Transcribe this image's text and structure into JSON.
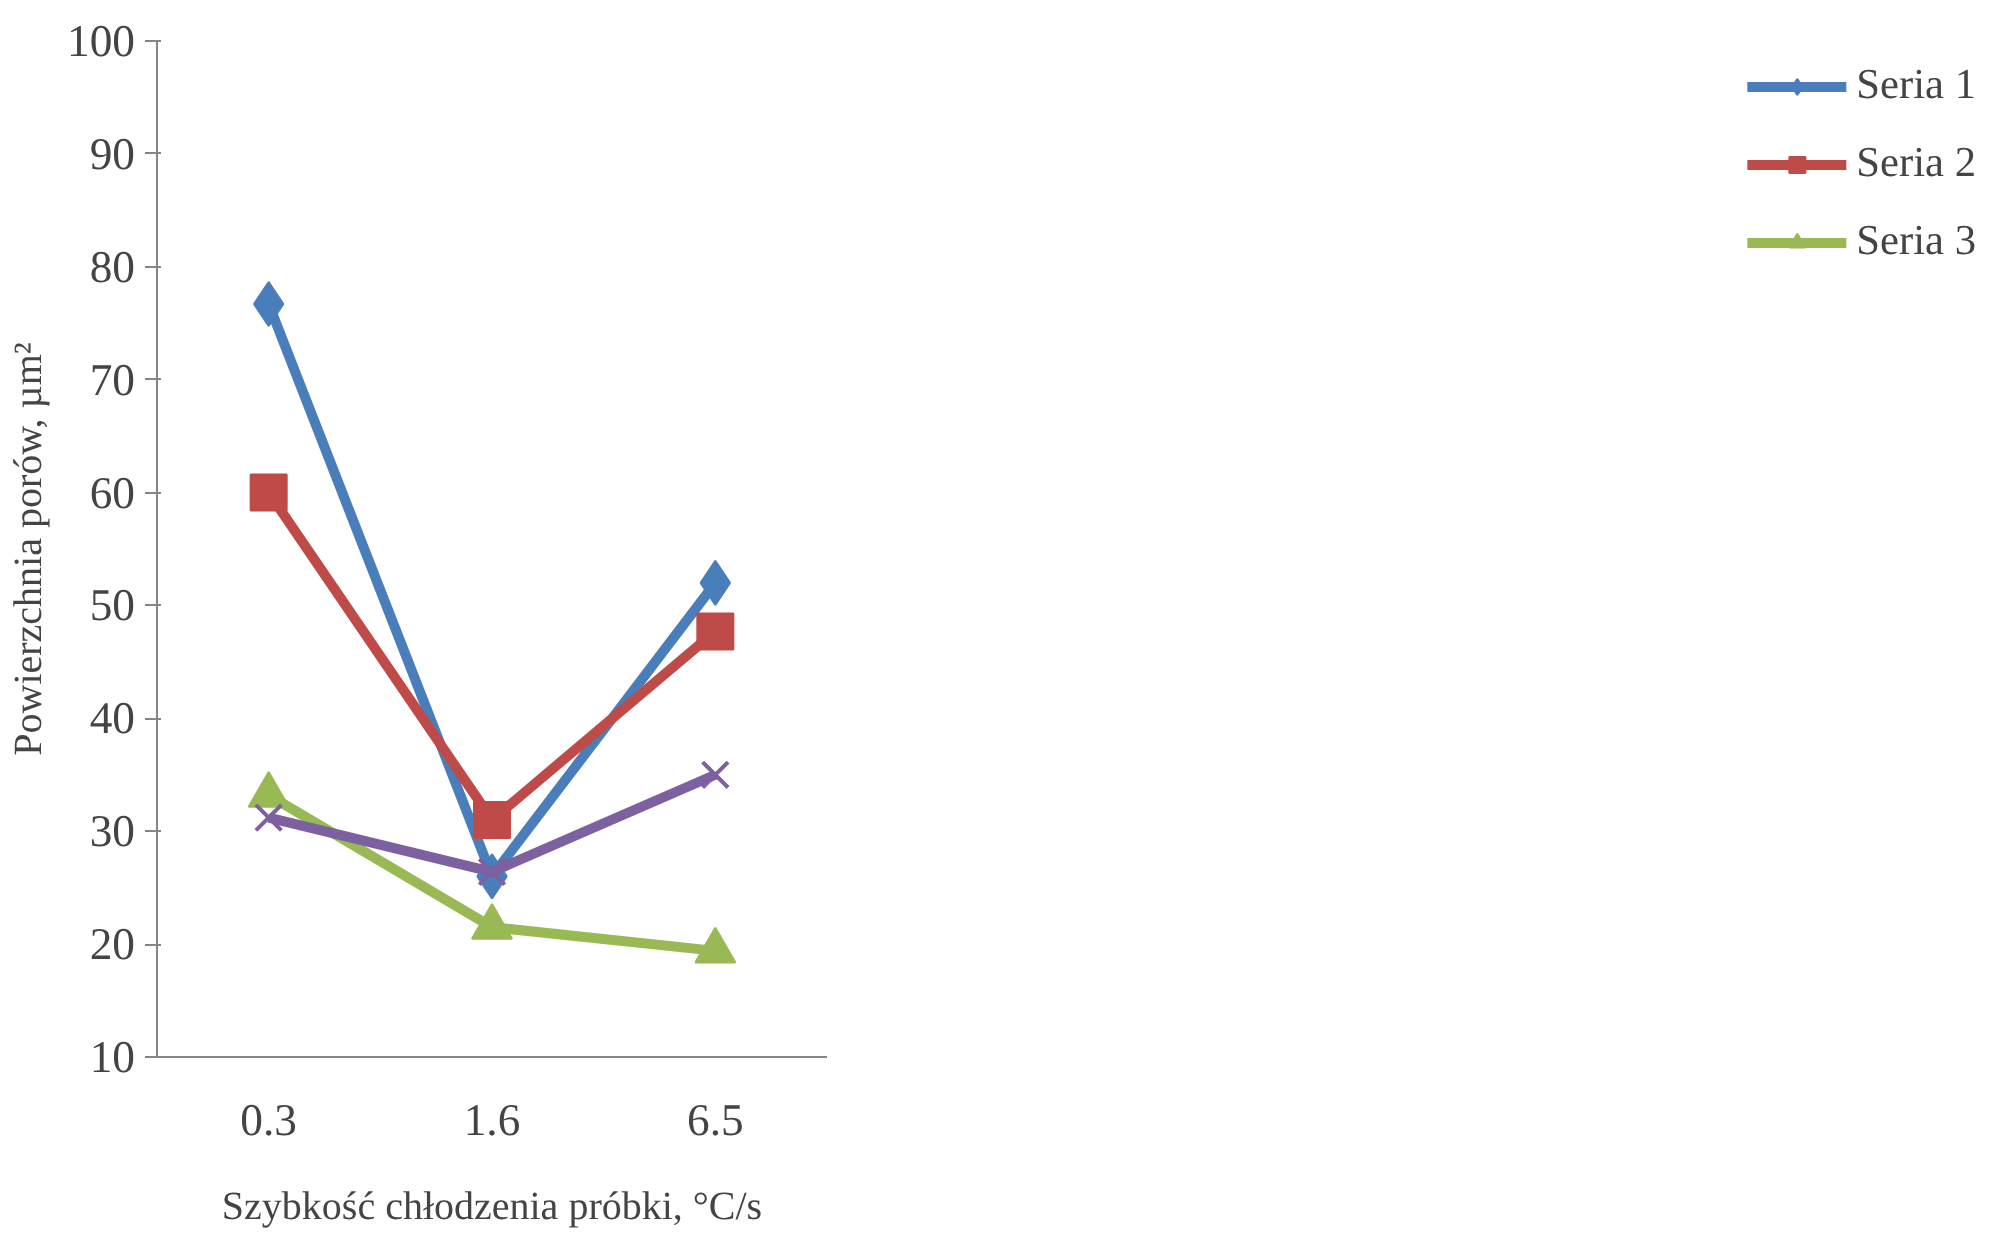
{
  "chart_data": {
    "type": "line",
    "xlabel": "Szybkość chłodzenia próbki, °C/s",
    "ylabel": "Powierzchnia porów, µm²",
    "categories": [
      "0.3",
      "1.6",
      "6.5"
    ],
    "series": [
      {
        "name": "Seria 1",
        "color": "#4a7ebb",
        "marker": "diamond",
        "values": [
          76.7,
          26,
          52
        ]
      },
      {
        "name": "Seria 2",
        "color": "#be4b48",
        "marker": "square",
        "values": [
          60,
          31,
          47.7
        ]
      },
      {
        "name": "Seria 3",
        "color": "#98b954",
        "marker": "triangle",
        "values": [
          33.2,
          21.5,
          19.4
        ]
      },
      {
        "color": "#7d60a0",
        "marker": "cross",
        "values": [
          31.2,
          26.4,
          35
        ]
      }
    ],
    "ylim": [
      10,
      100
    ],
    "yticks": [
      10,
      20,
      30,
      40,
      50,
      60,
      70,
      80,
      90,
      100
    ],
    "grid": false,
    "legend": "right",
    "line_style": "solid"
  }
}
